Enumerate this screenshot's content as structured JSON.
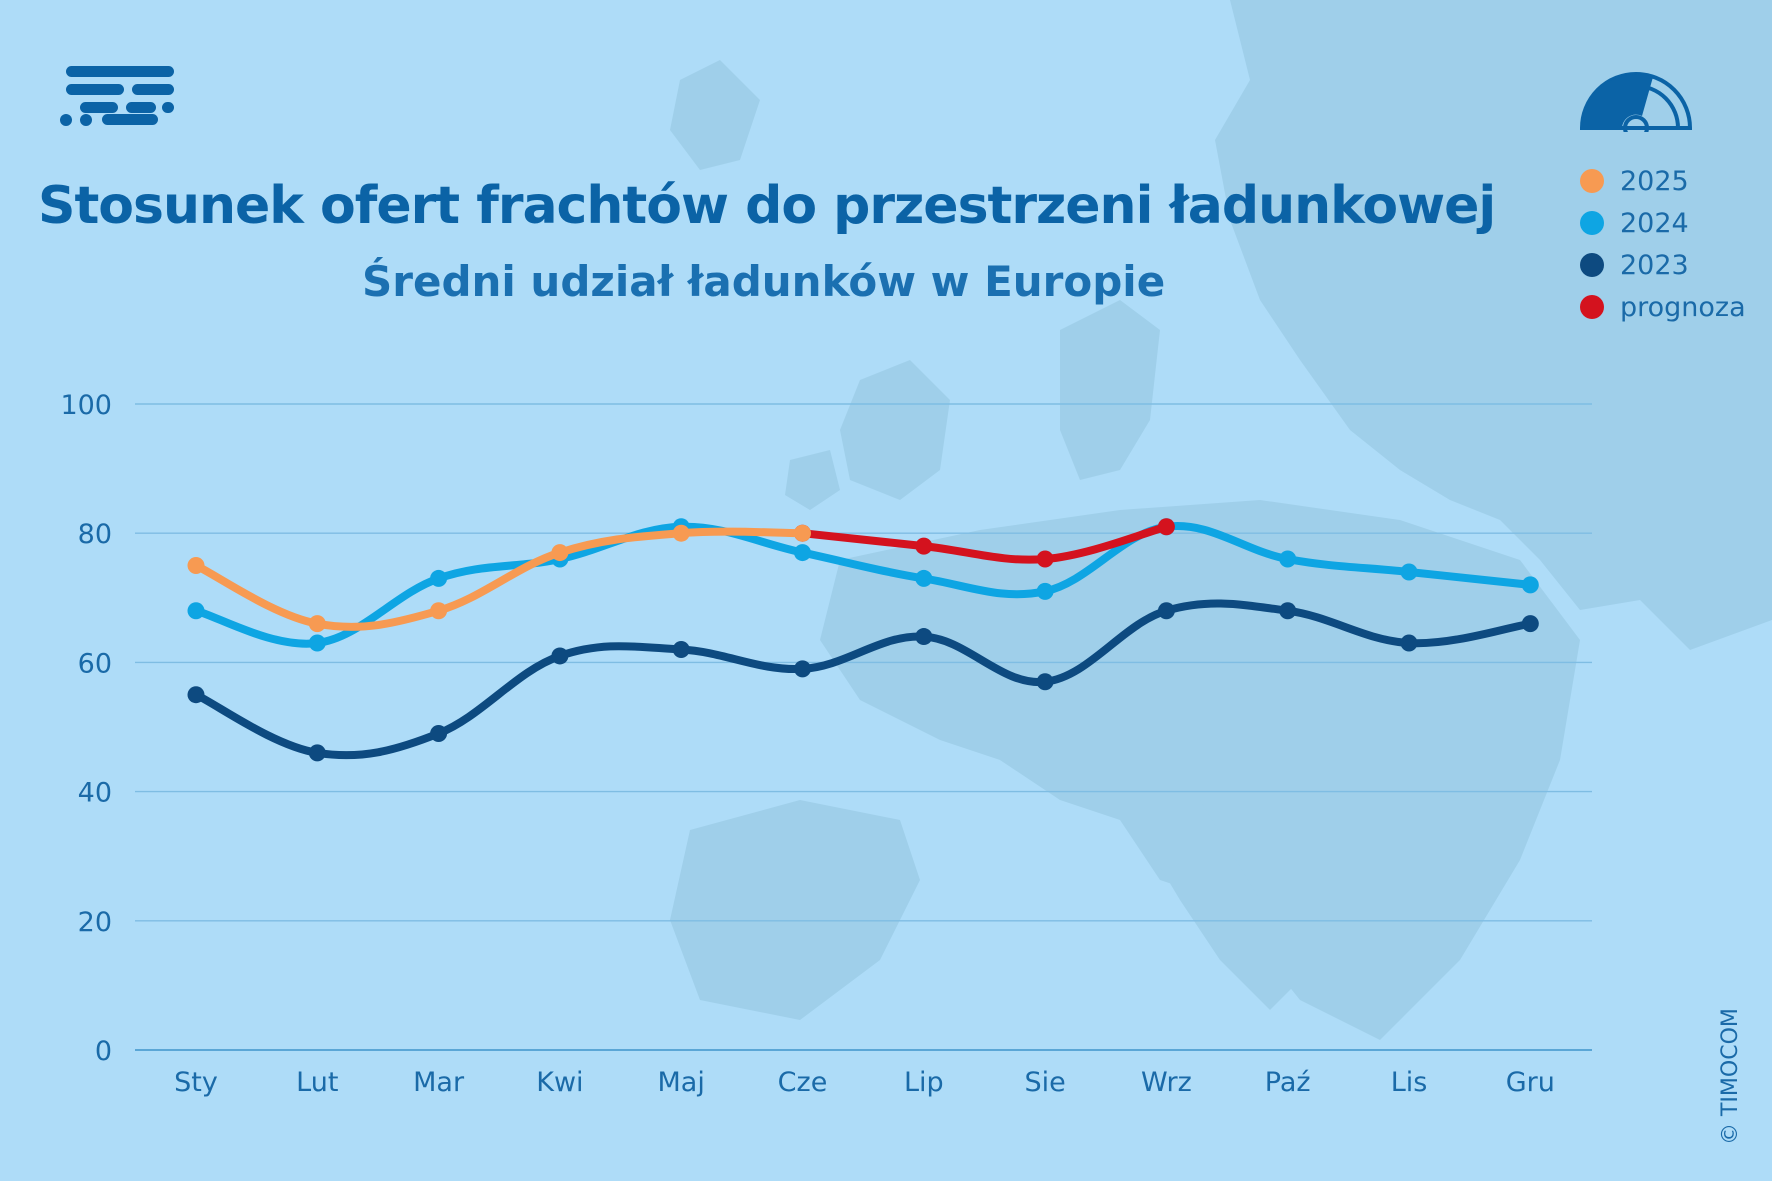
{
  "title": "Stosunek ofert frachtów do przestrzeni ładunkowej",
  "subtitle": "Średni udział ładunków w Europie",
  "copyright": "© TIMOCOM",
  "colors": {
    "background": "#aedcf8",
    "map": "#9fcfea",
    "grid": "#7fbde3",
    "text": "#1a6aa8",
    "title": "#0b63a6"
  },
  "icons": {
    "logo": "timocom-logo-icon",
    "gauge": "gauge-icon"
  },
  "chart_data": {
    "type": "line",
    "categories": [
      "Sty",
      "Lut",
      "Mar",
      "Kwi",
      "Maj",
      "Cze",
      "Lip",
      "Sie",
      "Wrz",
      "Paź",
      "Lis",
      "Gru"
    ],
    "ylim": [
      0,
      100
    ],
    "yticks": [
      0,
      20,
      40,
      60,
      80,
      100
    ],
    "grid": true,
    "legend_position": "top-right",
    "series": [
      {
        "name": "2023",
        "color": "#0d4a80",
        "values": [
          55,
          46,
          49,
          61,
          62,
          59,
          64,
          57,
          68,
          68,
          63,
          66
        ]
      },
      {
        "name": "2024",
        "color": "#0ea5e3",
        "values": [
          68,
          63,
          73,
          76,
          81,
          77,
          73,
          71,
          81,
          76,
          74,
          72
        ]
      },
      {
        "name": "2025",
        "color": "#f79a52",
        "values": [
          75,
          66,
          68,
          77,
          80,
          80,
          null,
          null,
          null,
          null,
          null,
          null
        ]
      },
      {
        "name": "prognoza",
        "color": "#d4121e",
        "values": [
          null,
          null,
          null,
          null,
          null,
          80,
          78,
          76,
          81,
          null,
          null,
          null
        ]
      }
    ],
    "legend_order": [
      "2025",
      "2024",
      "2023",
      "prognoza"
    ]
  }
}
